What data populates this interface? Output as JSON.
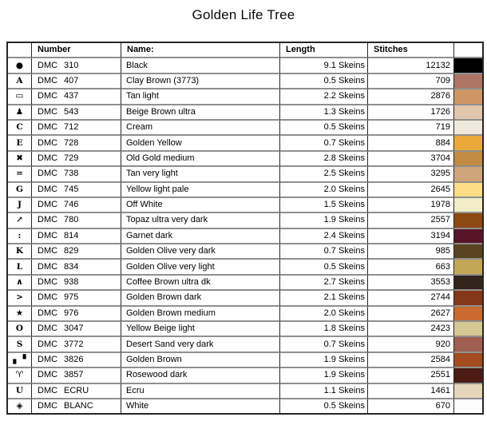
{
  "title": "Golden Life Tree",
  "table": {
    "headers": {
      "symbol": "",
      "number": "Number",
      "name": "Name:",
      "length": "Length",
      "stitches": "Stitches",
      "color": ""
    },
    "rows": [
      {
        "symbol": "●",
        "brand": "DMC",
        "code": "310",
        "name": "Black",
        "length": "9.1 Skeins",
        "stitches": "12132",
        "color": "#000000"
      },
      {
        "symbol": "A",
        "brand": "DMC",
        "code": "407",
        "name": "Clay Brown (3773)",
        "length": "0.5 Skeins",
        "stitches": "709",
        "color": "#AE7565"
      },
      {
        "symbol": "▭",
        "brand": "DMC",
        "code": "437",
        "name": "Tan light",
        "length": "2.2 Skeins",
        "stitches": "2876",
        "color": "#CD9662"
      },
      {
        "symbol": "♟",
        "brand": "DMC",
        "code": "543",
        "name": "Beige Brown ultra",
        "length": "1.3 Skeins",
        "stitches": "1726",
        "color": "#E2C6AC"
      },
      {
        "symbol": "C",
        "brand": "DMC",
        "code": "712",
        "name": "Cream",
        "length": "0.5 Skeins",
        "stitches": "719",
        "color": "#EFE9DB"
      },
      {
        "symbol": "E",
        "brand": "DMC",
        "code": "728",
        "name": "Golden Yellow",
        "length": "0.7 Skeins",
        "stitches": "884",
        "color": "#ECA93B"
      },
      {
        "symbol": "✖",
        "brand": "DMC",
        "code": "729",
        "name": "Old Gold medium",
        "length": "2.8 Skeins",
        "stitches": "3704",
        "color": "#C28B42"
      },
      {
        "symbol": "=",
        "brand": "DMC",
        "code": "738",
        "name": "Tan very light",
        "length": "2.5 Skeins",
        "stitches": "3295",
        "color": "#CFA67C"
      },
      {
        "symbol": "G",
        "brand": "DMC",
        "code": "745",
        "name": "Yellow light pale",
        "length": "2.0 Skeins",
        "stitches": "2645",
        "color": "#FBDE85"
      },
      {
        "symbol": "J",
        "brand": "DMC",
        "code": "746",
        "name": "Off White",
        "length": "1.5 Skeins",
        "stitches": "1978",
        "color": "#F2EDC6"
      },
      {
        "symbol": "↗",
        "brand": "DMC",
        "code": "780",
        "name": "Topaz ultra very dark",
        "length": "1.9 Skeins",
        "stitches": "2557",
        "color": "#8C4A12"
      },
      {
        "symbol": ":",
        "brand": "DMC",
        "code": "814",
        "name": "Garnet dark",
        "length": "2.4 Skeins",
        "stitches": "3194",
        "color": "#551527"
      },
      {
        "symbol": "K",
        "brand": "DMC",
        "code": "829",
        "name": "Golden Olive very dark",
        "length": "0.7 Skeins",
        "stitches": "985",
        "color": "#594320"
      },
      {
        "symbol": "L",
        "brand": "DMC",
        "code": "834",
        "name": "Golden Olive very light",
        "length": "0.5 Skeins",
        "stitches": "663",
        "color": "#C2A855"
      },
      {
        "symbol": "∧",
        "brand": "DMC",
        "code": "938",
        "name": "Coffee Brown ultra dk",
        "length": "2.7 Skeins",
        "stitches": "3553",
        "color": "#32231B"
      },
      {
        "symbol": ">",
        "brand": "DMC",
        "code": "975",
        "name": "Golden Brown dark",
        "length": "2.1 Skeins",
        "stitches": "2744",
        "color": "#843818"
      },
      {
        "symbol": "★",
        "brand": "DMC",
        "code": "976",
        "name": "Golden Brown medium",
        "length": "2.0 Skeins",
        "stitches": "2627",
        "color": "#C96A2E"
      },
      {
        "symbol": "O",
        "brand": "DMC",
        "code": "3047",
        "name": "Yellow Beige light",
        "length": "1.8 Skeins",
        "stitches": "2423",
        "color": "#D7C795"
      },
      {
        "symbol": "S",
        "brand": "DMC",
        "code": "3772",
        "name": "Desert Sand very dark",
        "length": "0.7 Skeins",
        "stitches": "920",
        "color": "#A05F51"
      },
      {
        "symbol": "▖▝",
        "brand": "DMC",
        "code": "3826",
        "name": "Golden Brown",
        "length": "1.9 Skeins",
        "stitches": "2584",
        "color": "#A34C1F"
      },
      {
        "symbol": "♈",
        "brand": "DMC",
        "code": "3857",
        "name": "Rosewood dark",
        "length": "1.9 Skeins",
        "stitches": "2551",
        "color": "#4C1B14"
      },
      {
        "symbol": "U",
        "brand": "DMC",
        "code": "ECRU",
        "name": "Ecru",
        "length": "1.1 Skeins",
        "stitches": "1461",
        "color": "#E4D6B9"
      },
      {
        "symbol": "◈",
        "brand": "DMC",
        "code": "BLANC",
        "name": "White",
        "length": "0.5 Skeins",
        "stitches": "670",
        "color": "#FDFDFD"
      }
    ]
  }
}
